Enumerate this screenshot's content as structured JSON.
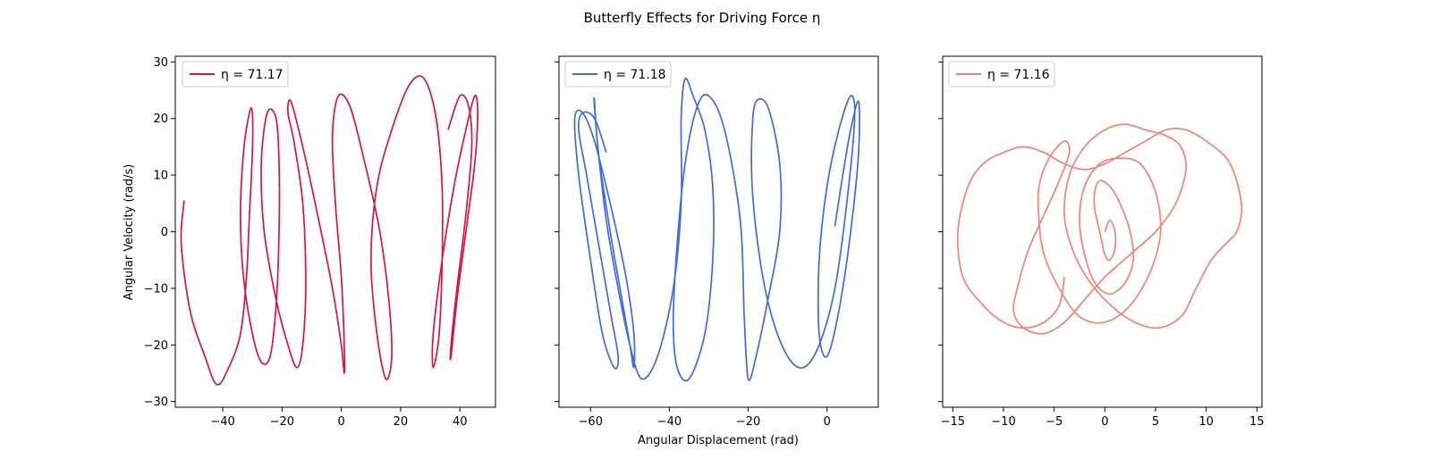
{
  "figure": {
    "title": "Butterfly Effects for Driving Force η"
  },
  "chart_data": [
    {
      "type": "line",
      "title": "",
      "xlabel": "",
      "ylabel": "Angular Velocity (rad/s)",
      "xlim": [
        -56,
        52
      ],
      "ylim": [
        -31,
        31
      ],
      "xticks": [
        -40,
        -20,
        0,
        20,
        40
      ],
      "yticks": [
        -30,
        -20,
        -10,
        0,
        10,
        20,
        30
      ],
      "legend_position": "top-left",
      "series": [
        {
          "name": "η = 71.17",
          "color": "#dc143c",
          "envelope": {
            "x_min": -54,
            "x_max": 46,
            "v_min": -28,
            "v_max": 28
          },
          "x": [
            -53,
            -54,
            -51,
            -46,
            -42,
            -38,
            -34,
            -32,
            -31,
            -30,
            -30,
            -31,
            -33,
            -34,
            -33,
            -30,
            -27,
            -24,
            -22,
            -21,
            -21,
            -22,
            -25,
            -27,
            -26,
            -22,
            -18,
            -15,
            -13,
            -12,
            -13,
            -16,
            -18,
            -17,
            -13,
            -8,
            -3,
            0,
            1,
            1,
            0,
            -2,
            -3,
            -1,
            3,
            8,
            13,
            16,
            17,
            15,
            12,
            10,
            12,
            17,
            23,
            28,
            32,
            34,
            34,
            33,
            31,
            31,
            34,
            38,
            42,
            45,
            46,
            45,
            42,
            39,
            37,
            37,
            39,
            42,
            44,
            43,
            40,
            36
          ],
          "y": [
            5.5,
            -2,
            -14,
            -22,
            -27,
            -24,
            -18,
            -8,
            3,
            14,
            21,
            21,
            14,
            3,
            -8,
            -18,
            -23,
            -22,
            -13,
            0,
            12,
            20,
            21,
            12,
            0,
            -12,
            -20,
            -24,
            -20,
            -9,
            5,
            16,
            21,
            23,
            15,
            3,
            -10,
            -20,
            -25,
            -20,
            -8,
            5,
            17,
            24,
            22,
            12,
            0,
            -12,
            -22,
            -26,
            -18,
            -5,
            8,
            18,
            26,
            27,
            20,
            8,
            -5,
            -18,
            -24,
            -18,
            -5,
            8,
            18,
            24,
            21,
            12,
            0,
            -12,
            -22,
            -20,
            -10,
            3,
            15,
            22,
            24,
            18
          ]
        }
      ]
    },
    {
      "type": "line",
      "title": "",
      "xlabel": "Angular Displacement (rad)",
      "ylabel": "",
      "xlim": [
        -68,
        13
      ],
      "ylim": [
        -31,
        31
      ],
      "xticks": [
        -60,
        -40,
        -20,
        0
      ],
      "yticks": [
        -30,
        -20,
        -10,
        0,
        10,
        20,
        30
      ],
      "legend_position": "top-left",
      "series": [
        {
          "name": "η = 71.18",
          "color": "#4169e1",
          "envelope": {
            "x_min": -64,
            "x_max": 9,
            "v_min": -27,
            "v_max": 28
          },
          "x": [
            2,
            4,
            6,
            8,
            8,
            6,
            3,
            0,
            -2,
            -2,
            0,
            3,
            6,
            7,
            5,
            2,
            -2,
            -6,
            -10,
            -14,
            -17,
            -19,
            -19,
            -18,
            -15,
            -12,
            -12,
            -15,
            -18,
            -20,
            -21,
            -22,
            -26,
            -30,
            -33,
            -36,
            -38,
            -39,
            -38,
            -35,
            -31,
            -29,
            -29,
            -31,
            -34,
            -36,
            -37,
            -37,
            -39,
            -43,
            -47,
            -50,
            -53,
            -56,
            -58,
            -59,
            -59,
            -58,
            -55,
            -52,
            -50,
            -49,
            -49,
            -51,
            -55,
            -59,
            -62,
            -64,
            -63,
            -60,
            -57,
            -54,
            -53,
            -55,
            -58,
            -61,
            -63,
            -62,
            -59,
            -56
          ],
          "y": [
            1,
            10,
            18,
            23,
            14,
            0,
            -14,
            -22,
            -18,
            -5,
            8,
            18,
            24,
            20,
            5,
            -10,
            -20,
            -24,
            -22,
            -15,
            -5,
            8,
            18,
            23,
            22,
            12,
            0,
            -12,
            -22,
            -26,
            -15,
            2,
            18,
            24,
            22,
            12,
            -2,
            -16,
            -24,
            -26,
            -18,
            -5,
            8,
            18,
            24,
            27,
            20,
            5,
            -10,
            -22,
            -26,
            -20,
            -10,
            2,
            14,
            22,
            23,
            14,
            0,
            -12,
            -20,
            -24,
            -18,
            -8,
            5,
            16,
            21,
            20,
            10,
            -5,
            -18,
            -24,
            -22,
            -14,
            -2,
            10,
            18,
            21,
            20,
            14
          ]
        }
      ]
    },
    {
      "type": "line",
      "title": "",
      "xlabel": "",
      "ylabel": "",
      "xlim": [
        -16,
        15.5
      ],
      "ylim": [
        -31,
        31
      ],
      "xticks": [
        -15,
        -10,
        -5,
        0,
        5,
        10,
        15
      ],
      "yticks": [
        -30,
        -20,
        -10,
        0,
        10,
        20,
        30
      ],
      "legend_position": "top-left",
      "series": [
        {
          "name": "η = 71.16",
          "color": "#fa8072",
          "envelope": {
            "x_min": -14.5,
            "x_max": 13.5,
            "v_min": -19,
            "v_max": 19
          },
          "x": [
            0,
            0.5,
            1,
            1,
            0.5,
            0,
            -0.5,
            -1,
            -1,
            -0.5,
            0.5,
            1.5,
            2.5,
            2.8,
            2,
            0.5,
            -1,
            -2,
            -2.5,
            -2,
            -0.5,
            1.5,
            3.5,
            5,
            5.5,
            4.5,
            2.5,
            0,
            -2.5,
            -4.5,
            -6,
            -6.5,
            -6.5,
            -5.5,
            -4,
            -3.5,
            -4.5,
            -6,
            -7.5,
            -8.5,
            -9,
            -8,
            -6,
            -4,
            -2,
            0,
            2.5,
            5,
            7,
            8,
            7.5,
            6,
            4,
            2,
            0,
            -2,
            -3.5,
            -4,
            -3,
            -1,
            2,
            5,
            7.5,
            9,
            10.5,
            12,
            13,
            13.5,
            13,
            12,
            10,
            8,
            6,
            4,
            2,
            0,
            -2,
            -4,
            -6,
            -8,
            -10,
            -12,
            -13.5,
            -14.5,
            -14,
            -12,
            -10,
            -8,
            -6,
            -4.5,
            -4
          ],
          "y": [
            0,
            2,
            0,
            -3,
            -5,
            -4,
            0,
            4,
            7,
            9,
            8,
            5,
            0,
            -5,
            -9,
            -11,
            -9,
            -4,
            2,
            8,
            12,
            13,
            12,
            7,
            0,
            -7,
            -13,
            -16,
            -15,
            -10,
            -4,
            2,
            8,
            13,
            16,
            14,
            9,
            3,
            -3,
            -9,
            -14,
            -17,
            -18,
            -16,
            -12,
            -8,
            -4,
            0,
            5,
            11,
            15,
            17,
            18,
            19,
            18,
            15,
            10,
            3,
            -4,
            -10,
            -15,
            -17,
            -15,
            -10,
            -5,
            -2,
            0,
            4,
            9,
            13,
            16,
            18,
            18,
            16,
            14,
            12,
            11,
            12,
            14,
            15,
            14,
            12,
            8,
            0,
            -8,
            -13,
            -16,
            -17,
            -16,
            -13,
            -8
          ]
        }
      ]
    }
  ]
}
